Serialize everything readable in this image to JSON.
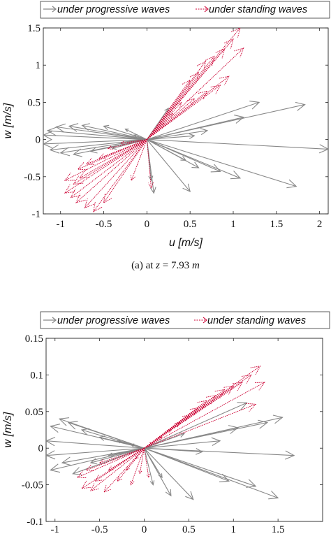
{
  "chart_data": [
    {
      "type": "quiver",
      "caption": "(a) at z = 7.93 m",
      "caption_prefix": "(a) at",
      "caption_var": "z",
      "caption_value": "= 7.93",
      "caption_unit": "m",
      "xlabel": "u [m/s]",
      "ylabel": "w [m/s]",
      "xlim": [
        -1.2,
        2.1
      ],
      "ylim": [
        -1,
        1.5
      ],
      "xticks": [
        -1,
        -0.5,
        0,
        0.5,
        1,
        1.5,
        2
      ],
      "xtick_labels": [
        "-1",
        "-0.5",
        "0",
        "0.5",
        "1",
        "1.5",
        "2"
      ],
      "yticks": [
        -1,
        -0.5,
        0,
        0.5,
        1,
        1.5
      ],
      "ytick_labels": [
        "-1",
        "-0.5",
        "0",
        "0.5",
        "1",
        "1.5"
      ],
      "legend_position": "top",
      "series": [
        {
          "name": "under progressive waves",
          "color": "#888888",
          "vectors": [
            [
              2.1,
              -0.13
            ],
            [
              1.83,
              0.47
            ],
            [
              1.73,
              -0.63
            ],
            [
              1.3,
              0.5
            ],
            [
              1.08,
              -0.52
            ],
            [
              1.12,
              0.3
            ],
            [
              0.85,
              -0.43
            ],
            [
              0.6,
              -0.38
            ],
            [
              0.45,
              -0.28
            ],
            [
              0.7,
              0.12
            ],
            [
              0.55,
              0.05
            ],
            [
              0.5,
              -0.7
            ],
            [
              0.05,
              -0.55
            ],
            [
              0.08,
              -0.72
            ],
            [
              0.25,
              0.42
            ],
            [
              -1.2,
              0.06
            ],
            [
              -1.2,
              -0.06
            ],
            [
              -1.15,
              0.12
            ],
            [
              -1.12,
              -0.14
            ],
            [
              -1.05,
              0.17
            ],
            [
              -1.0,
              -0.18
            ],
            [
              -0.9,
              0.18
            ],
            [
              -0.85,
              -0.2
            ],
            [
              -0.75,
              0.19
            ],
            [
              -0.65,
              -0.16
            ],
            [
              -0.5,
              0.18
            ],
            [
              -0.4,
              -0.12
            ],
            [
              -0.25,
              0.14
            ],
            [
              -0.15,
              0.06
            ]
          ]
        },
        {
          "name": "under standing waves",
          "color": "#cc0033",
          "vectors": [
            [
              1.08,
              1.5
            ],
            [
              1.0,
              1.35
            ],
            [
              1.12,
              1.23
            ],
            [
              0.9,
              1.22
            ],
            [
              0.78,
              1.12
            ],
            [
              0.68,
              1.05
            ],
            [
              0.6,
              0.9
            ],
            [
              0.5,
              0.8
            ],
            [
              0.95,
              0.85
            ],
            [
              0.85,
              0.73
            ],
            [
              0.7,
              0.65
            ],
            [
              0.55,
              0.55
            ],
            [
              0.4,
              0.5
            ],
            [
              0.3,
              0.35
            ],
            [
              0.2,
              0.22
            ],
            [
              -0.62,
              -0.97
            ],
            [
              -0.72,
              -0.92
            ],
            [
              -0.82,
              -0.85
            ],
            [
              -0.88,
              -0.78
            ],
            [
              -0.95,
              -0.72
            ],
            [
              -0.85,
              -0.6
            ],
            [
              -0.95,
              -0.55
            ],
            [
              -0.78,
              -0.52
            ],
            [
              -0.8,
              -0.4
            ],
            [
              -0.7,
              -0.33
            ],
            [
              -0.55,
              -0.25
            ],
            [
              -0.45,
              -0.12
            ],
            [
              -0.3,
              -0.05
            ],
            [
              0.05,
              -0.65
            ],
            [
              -0.18,
              -0.55
            ],
            [
              -0.5,
              -0.85
            ]
          ]
        }
      ]
    },
    {
      "type": "quiver",
      "xlabel": "",
      "ylabel": "w [m/s]",
      "xlim": [
        -1.1,
        2.0
      ],
      "ylim": [
        -0.1,
        0.15
      ],
      "xticks": [
        -1,
        -0.5,
        0,
        0.5,
        1,
        1.5
      ],
      "xtick_labels": [
        "-1",
        "-0.5",
        "0",
        "0.5",
        "1",
        "1.5"
      ],
      "yticks": [
        -0.1,
        -0.05,
        0,
        0.05,
        0.1,
        0.15
      ],
      "ytick_labels": [
        "-0.1",
        "-0.05",
        "0",
        "0.05",
        "0.1",
        "0.15"
      ],
      "legend_position": "top",
      "series": [
        {
          "name": "under progressive waves",
          "color": "#888888",
          "vectors": [
            [
              1.68,
              -0.01
            ],
            [
              1.55,
              0.042
            ],
            [
              1.5,
              -0.068
            ],
            [
              1.38,
              0.035
            ],
            [
              1.25,
              -0.052
            ],
            [
              1.15,
              0.062
            ],
            [
              1.05,
              0.028
            ],
            [
              0.95,
              -0.045
            ],
            [
              0.85,
              0.01
            ],
            [
              0.65,
              -0.005
            ],
            [
              0.55,
              -0.07
            ],
            [
              0.45,
              0.02
            ],
            [
              0.3,
              -0.065
            ],
            [
              0.2,
              -0.04
            ],
            [
              0.1,
              -0.05
            ],
            [
              -1.1,
              0.01
            ],
            [
              -1.1,
              -0.01
            ],
            [
              -1.05,
              0.03
            ],
            [
              -1.05,
              -0.03
            ],
            [
              -0.95,
              0.04
            ],
            [
              -0.92,
              -0.02
            ],
            [
              -0.85,
              0.035
            ],
            [
              -0.8,
              -0.035
            ],
            [
              -0.7,
              0.025
            ],
            [
              -0.6,
              -0.02
            ],
            [
              -0.5,
              0.015
            ],
            [
              -0.4,
              -0.01
            ],
            [
              -0.3,
              0.01
            ],
            [
              -0.15,
              0.005
            ]
          ]
        },
        {
          "name": "under standing waves",
          "color": "#cc0033",
          "vectors": [
            [
              1.3,
              0.112
            ],
            [
              1.2,
              0.1
            ],
            [
              1.35,
              0.09
            ],
            [
              1.1,
              0.09
            ],
            [
              1.0,
              0.085
            ],
            [
              0.9,
              0.08
            ],
            [
              0.8,
              0.072
            ],
            [
              0.7,
              0.065
            ],
            [
              1.25,
              0.06
            ],
            [
              0.6,
              0.055
            ],
            [
              0.5,
              0.045
            ],
            [
              0.4,
              0.035
            ],
            [
              0.3,
              0.025
            ],
            [
              0.2,
              0.015
            ],
            [
              0.1,
              0.008
            ],
            [
              -0.6,
              -0.058
            ],
            [
              -0.7,
              -0.055
            ],
            [
              -0.75,
              -0.04
            ],
            [
              -0.65,
              -0.03
            ],
            [
              -0.55,
              -0.045
            ],
            [
              -0.5,
              -0.02
            ],
            [
              -0.45,
              -0.06
            ],
            [
              -0.4,
              -0.03
            ],
            [
              -0.3,
              -0.045
            ],
            [
              -0.2,
              -0.03
            ],
            [
              -0.15,
              -0.05
            ],
            [
              -0.1,
              -0.015
            ],
            [
              -0.05,
              -0.035
            ],
            [
              0.05,
              -0.04
            ]
          ]
        }
      ]
    }
  ]
}
